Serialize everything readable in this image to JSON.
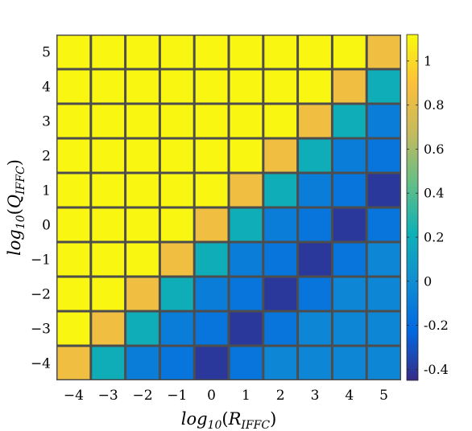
{
  "chart_data": {
    "type": "heatmap",
    "xlabel": "log10(R_IFFC)",
    "ylabel": "log10(Q_IFFC)",
    "x": [
      -4,
      -3,
      -2,
      -1,
      0,
      1,
      2,
      3,
      4,
      5
    ],
    "y": [
      5,
      4,
      3,
      2,
      1,
      0,
      -1,
      -2,
      -3,
      -4
    ],
    "x_tick_labels": [
      "−4",
      "−3",
      "−2",
      "−1",
      "0",
      "1",
      "2",
      "3",
      "4",
      "5"
    ],
    "y_tick_labels": [
      "5",
      "4",
      "3",
      "2",
      "1",
      "0",
      "−1",
      "−2",
      "−3",
      "−4"
    ],
    "values": [
      [
        1.1,
        1.1,
        1.1,
        1.1,
        1.1,
        1.1,
        1.1,
        1.1,
        1.1,
        0.85
      ],
      [
        1.1,
        1.1,
        1.1,
        1.1,
        1.1,
        1.1,
        1.1,
        1.1,
        0.85,
        0.2
      ],
      [
        1.1,
        1.1,
        1.1,
        1.1,
        1.1,
        1.1,
        1.1,
        0.85,
        0.2,
        -0.1
      ],
      [
        1.1,
        1.1,
        1.1,
        1.1,
        1.1,
        1.1,
        0.85,
        0.2,
        -0.1,
        -0.15
      ],
      [
        1.1,
        1.1,
        1.1,
        1.1,
        1.1,
        0.85,
        0.2,
        -0.1,
        -0.15,
        -0.4
      ],
      [
        1.1,
        1.1,
        1.1,
        1.1,
        0.85,
        0.2,
        -0.1,
        -0.15,
        -0.4,
        -0.15
      ],
      [
        1.1,
        1.1,
        1.1,
        0.85,
        0.2,
        -0.1,
        -0.15,
        -0.4,
        -0.15,
        -0.05
      ],
      [
        1.1,
        1.1,
        0.85,
        0.2,
        -0.1,
        -0.15,
        -0.4,
        -0.15,
        -0.05,
        -0.05
      ],
      [
        1.1,
        0.85,
        0.2,
        -0.1,
        -0.15,
        -0.4,
        -0.15,
        -0.05,
        -0.05,
        -0.05
      ],
      [
        0.85,
        0.2,
        -0.1,
        -0.15,
        -0.4,
        -0.15,
        -0.05,
        -0.05,
        -0.05,
        -0.05
      ]
    ],
    "clim": [
      -0.45,
      1.12
    ],
    "colorbar_ticks": [
      1,
      0.8,
      0.6,
      0.4,
      0.2,
      0,
      -0.2,
      -0.4
    ],
    "colorbar_tick_labels": [
      "1",
      "0.8",
      "0.6",
      "0.4",
      "0.2",
      "0",
      "-0.2",
      "-0.4"
    ],
    "colormap": "parula",
    "colormap_stops": [
      "#352a87",
      "#0268e1",
      "#108ed2",
      "#0fb1b5",
      "#65be86",
      "#c4bb5e",
      "#fbbf3a",
      "#f9fb0e"
    ],
    "gap_color": "#4d4d4d",
    "grid": false,
    "legend": "colorbar-right"
  }
}
